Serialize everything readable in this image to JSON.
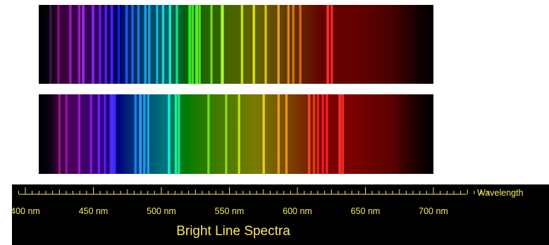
{
  "spectra": {
    "range_nm": [
      360,
      760
    ],
    "spectrum_a": {
      "lines": [
        {
          "nm": 372,
          "intensity": 0.5
        },
        {
          "nm": 380,
          "intensity": 0.4
        },
        {
          "nm": 392,
          "intensity": 0.55
        },
        {
          "nm": 401,
          "intensity": 0.6
        },
        {
          "nm": 405,
          "intensity": 0.75
        },
        {
          "nm": 415,
          "intensity": 0.7
        },
        {
          "nm": 422,
          "intensity": 0.55
        },
        {
          "nm": 428,
          "intensity": 0.6
        },
        {
          "nm": 434,
          "intensity": 0.7
        },
        {
          "nm": 441,
          "intensity": 0.5
        },
        {
          "nm": 449,
          "intensity": 0.65
        },
        {
          "nm": 455,
          "intensity": 0.55
        },
        {
          "nm": 461,
          "intensity": 0.5
        },
        {
          "nm": 468,
          "intensity": 0.6
        },
        {
          "nm": 472,
          "intensity": 0.5
        },
        {
          "nm": 480,
          "intensity": 0.45
        },
        {
          "nm": 486,
          "intensity": 0.55
        },
        {
          "nm": 493,
          "intensity": 0.6
        },
        {
          "nm": 500,
          "intensity": 0.5
        },
        {
          "nm": 513,
          "intensity": 0.7
        },
        {
          "nm": 516,
          "intensity": 0.6
        },
        {
          "nm": 520,
          "intensity": 0.75
        },
        {
          "nm": 523,
          "intensity": 0.55
        },
        {
          "nm": 535,
          "intensity": 0.5
        },
        {
          "nm": 546,
          "intensity": 0.9
        },
        {
          "nm": 566,
          "intensity": 0.6
        },
        {
          "nm": 578,
          "intensity": 0.55
        },
        {
          "nm": 590,
          "intensity": 0.5
        },
        {
          "nm": 603,
          "intensity": 0.55
        },
        {
          "nm": 613,
          "intensity": 0.5
        },
        {
          "nm": 618,
          "intensity": 0.45
        },
        {
          "nm": 625,
          "intensity": 0.5
        },
        {
          "nm": 653,
          "intensity": 0.8
        },
        {
          "nm": 657,
          "intensity": 0.7
        }
      ]
    },
    "spectrum_b": {
      "lines": [
        {
          "nm": 381,
          "intensity": 0.5
        },
        {
          "nm": 388,
          "intensity": 0.45
        },
        {
          "nm": 401,
          "intensity": 0.6
        },
        {
          "nm": 413,
          "intensity": 0.55
        },
        {
          "nm": 421,
          "intensity": 0.6
        },
        {
          "nm": 427,
          "intensity": 0.55
        },
        {
          "nm": 433,
          "intensity": 0.7
        },
        {
          "nm": 435,
          "intensity": 0.8
        },
        {
          "nm": 437,
          "intensity": 0.7
        },
        {
          "nm": 458,
          "intensity": 0.6
        },
        {
          "nm": 463,
          "intensity": 0.75
        },
        {
          "nm": 467,
          "intensity": 0.55
        },
        {
          "nm": 471,
          "intensity": 0.5
        },
        {
          "nm": 492,
          "intensity": 0.6
        },
        {
          "nm": 499,
          "intensity": 0.65
        },
        {
          "nm": 502,
          "intensity": 0.55
        },
        {
          "nm": 532,
          "intensity": 0.5
        },
        {
          "nm": 550,
          "intensity": 0.45
        },
        {
          "nm": 563,
          "intensity": 0.5
        },
        {
          "nm": 588,
          "intensity": 0.55
        },
        {
          "nm": 603,
          "intensity": 0.5
        },
        {
          "nm": 611,
          "intensity": 0.55
        },
        {
          "nm": 634,
          "intensity": 0.6
        },
        {
          "nm": 639,
          "intensity": 0.55
        },
        {
          "nm": 643,
          "intensity": 0.5
        },
        {
          "nm": 648,
          "intensity": 0.6
        },
        {
          "nm": 652,
          "intensity": 0.65
        },
        {
          "nm": 665,
          "intensity": 0.75
        },
        {
          "nm": 668,
          "intensity": 0.7
        }
      ]
    }
  },
  "scale": {
    "axis_label": "Wavelength",
    "tick_labels": [
      "400 nm",
      "450 nm",
      "500 nm",
      "550 nm",
      "600 nm",
      "650 nm",
      "700 nm"
    ],
    "tick_values": [
      400,
      450,
      500,
      550,
      600,
      650,
      700
    ],
    "minor_step_nm": 5,
    "color": "#f5e663"
  },
  "caption": {
    "title": "Bright Line Spectra",
    "color": "#f5e663"
  }
}
